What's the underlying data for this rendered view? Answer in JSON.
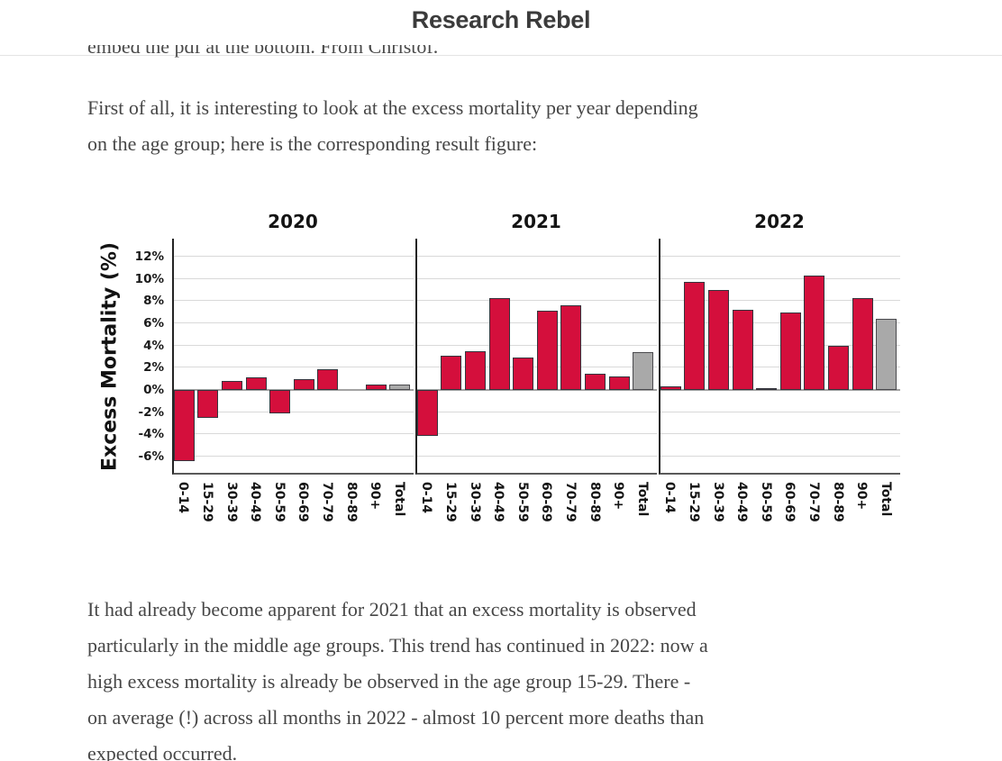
{
  "header": {
    "title": "Research Rebel"
  },
  "clipped_line": {
    "text": "embed the pdf at the bottom. From Christof."
  },
  "paragraph_top": {
    "lines": [
      "First of all, it is interesting to look at the excess mortality per year depending",
      "on the age group; here is the corresponding result figure:"
    ]
  },
  "chart_data": {
    "type": "bar",
    "ylabel": "Excess Mortality (%)",
    "unit": "%",
    "categories": [
      "0-14",
      "15-29",
      "30-39",
      "40-49",
      "50-59",
      "60-69",
      "70-79",
      "80-89",
      "90+",
      "Total"
    ],
    "y_tick_labels": [
      "12%",
      "10%",
      "8%",
      "6%",
      "4%",
      "2%",
      "0%",
      "-2%",
      "-4%",
      "-6%"
    ],
    "y_tick_values": [
      12,
      10,
      8,
      6,
      4,
      2,
      0,
      -2,
      -4,
      -6
    ],
    "ylim": [
      -7.6,
      13.6
    ],
    "grid": true,
    "legend": "none",
    "panels": [
      {
        "title": "2020",
        "values": [
          -6.4,
          -2.5,
          0.8,
          1.1,
          -2.1,
          1.0,
          1.9,
          0.0,
          0.5,
          0.5
        ]
      },
      {
        "title": "2021",
        "values": [
          -4.1,
          3.1,
          3.5,
          8.3,
          2.9,
          7.1,
          7.6,
          1.5,
          1.2,
          3.4
        ]
      },
      {
        "title": "2022",
        "values": [
          0.3,
          9.7,
          9.0,
          7.2,
          0.15,
          7.0,
          10.3,
          4.0,
          8.3,
          6.4
        ]
      }
    ],
    "bar_color": "#d40f3c",
    "total_bar_color": "#a9a9a9",
    "bar_border_color": "#35353d"
  },
  "paragraph_bottom": {
    "lines": [
      "It had already become apparent for 2021 that an excess mortality is observed",
      "particularly in the middle age groups. This trend has continued in 2022: now a",
      "high excess mortality is already be observed in the age group 15-29. There -",
      "on average (!) across all months in 2022 - almost 10 percent more deaths than",
      "expected occurred."
    ]
  }
}
